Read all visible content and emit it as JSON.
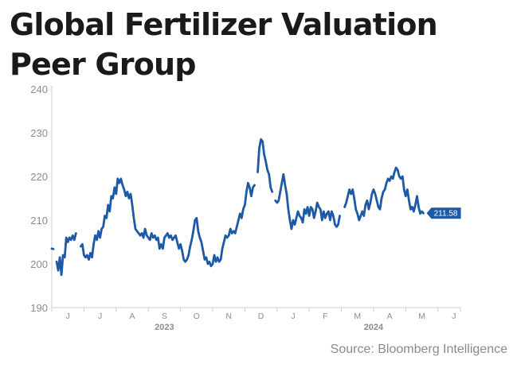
{
  "title_lines": [
    "Global Fertilizer Valuation",
    "Peer Group"
  ],
  "source": "Source: Bloomberg Intelligence",
  "colors": {
    "line": "#1c5aa6",
    "axis": "#cccccc",
    "text": "#8c8c8c"
  },
  "chart_data": {
    "type": "line",
    "title": "Global Fertilizer Valuation Peer Group",
    "xlabel": "",
    "ylabel": "",
    "ylim": [
      190,
      240
    ],
    "yticks": [
      190,
      200,
      210,
      220,
      230,
      240
    ],
    "xlim": [
      0,
      12.7
    ],
    "xticks": [
      {
        "label": "J",
        "x": 0.5
      },
      {
        "label": "J",
        "x": 1.5
      },
      {
        "label": "A",
        "x": 2.5
      },
      {
        "label": "S",
        "x": 3.5
      },
      {
        "label": "O",
        "x": 4.5
      },
      {
        "label": "N",
        "x": 5.5
      },
      {
        "label": "D",
        "x": 6.5
      },
      {
        "label": "J",
        "x": 7.5
      },
      {
        "label": "F",
        "x": 8.5
      },
      {
        "label": "M",
        "x": 9.5
      },
      {
        "label": "A",
        "x": 10.5
      },
      {
        "label": "M",
        "x": 11.5
      },
      {
        "label": "J",
        "x": 12.5
      }
    ],
    "year_labels": [
      {
        "label": "2023",
        "x": 3.5
      },
      {
        "label": "2024",
        "x": 10.0
      }
    ],
    "grid": false,
    "last_value_label": "211.58",
    "series": [
      {
        "name": "Global Fertilizer Valuation Peer Group",
        "segments": [
          [
            [
              0.0,
              203.5
            ],
            [
              0.05,
              203.4
            ]
          ],
          [
            [
              0.15,
              200.5
            ],
            [
              0.2,
              198.5
            ],
            [
              0.25,
              201.5
            ],
            [
              0.3,
              197.5
            ],
            [
              0.35,
              202.0
            ],
            [
              0.4,
              201.5
            ],
            [
              0.45,
              206.0
            ],
            [
              0.5,
              205.0
            ],
            [
              0.55,
              206.0
            ],
            [
              0.6,
              205.5
            ],
            [
              0.65,
              206.5
            ],
            [
              0.7,
              205.5
            ],
            [
              0.75,
              207.0
            ]
          ],
          [
            [
              0.9,
              204.0
            ],
            [
              0.95,
              204.5
            ],
            [
              1.0,
              202.0
            ],
            [
              1.05,
              201.5
            ],
            [
              1.1,
              202.0
            ],
            [
              1.15,
              201.0
            ],
            [
              1.2,
              202.5
            ],
            [
              1.25,
              201.5
            ],
            [
              1.3,
              204.5
            ],
            [
              1.35,
              206.5
            ],
            [
              1.4,
              205.5
            ],
            [
              1.45,
              207.5
            ],
            [
              1.5,
              206.0
            ],
            [
              1.55,
              208.0
            ],
            [
              1.6,
              208.5
            ],
            [
              1.65,
              211.0
            ],
            [
              1.7,
              210.5
            ],
            [
              1.75,
              213.5
            ],
            [
              1.8,
              212.0
            ],
            [
              1.85,
              215.5
            ],
            [
              1.9,
              215.0
            ],
            [
              1.95,
              217.5
            ],
            [
              2.0,
              216.0
            ],
            [
              2.05,
              219.5
            ],
            [
              2.1,
              218.5
            ],
            [
              2.15,
              219.5
            ],
            [
              2.2,
              218.0
            ],
            [
              2.25,
              217.0
            ],
            [
              2.3,
              215.5
            ],
            [
              2.35,
              216.5
            ],
            [
              2.4,
              215.0
            ],
            [
              2.45,
              216.0
            ],
            [
              2.5,
              213.5
            ],
            [
              2.55,
              210.5
            ],
            [
              2.6,
              208.0
            ],
            [
              2.65,
              207.5
            ],
            [
              2.7,
              207.0
            ],
            [
              2.75,
              206.5
            ],
            [
              2.8,
              207.0
            ],
            [
              2.85,
              206.0
            ],
            [
              2.9,
              208.0
            ],
            [
              2.95,
              206.5
            ],
            [
              3.0,
              206.0
            ],
            [
              3.05,
              205.5
            ],
            [
              3.1,
              207.0
            ],
            [
              3.15,
              206.0
            ],
            [
              3.2,
              206.5
            ],
            [
              3.25,
              205.5
            ],
            [
              3.3,
              206.0
            ],
            [
              3.35,
              203.5
            ],
            [
              3.4,
              204.5
            ],
            [
              3.45,
              203.5
            ],
            [
              3.5,
              206.0
            ],
            [
              3.55,
              206.5
            ],
            [
              3.6,
              207.0
            ],
            [
              3.65,
              206.0
            ],
            [
              3.7,
              206.5
            ],
            [
              3.75,
              205.5
            ],
            [
              3.8,
              206.0
            ],
            [
              3.85,
              206.5
            ],
            [
              3.9,
              205.0
            ],
            [
              3.95,
              203.5
            ],
            [
              4.0,
              204.5
            ],
            [
              4.05,
              203.0
            ],
            [
              4.1,
              201.0
            ],
            [
              4.15,
              200.5
            ],
            [
              4.2,
              201.0
            ],
            [
              4.25,
              202.0
            ],
            [
              4.3,
              204.0
            ],
            [
              4.35,
              205.5
            ],
            [
              4.4,
              207.5
            ],
            [
              4.45,
              210.0
            ],
            [
              4.5,
              210.5
            ],
            [
              4.55,
              207.5
            ],
            [
              4.6,
              206.0
            ],
            [
              4.65,
              205.0
            ],
            [
              4.7,
              203.0
            ],
            [
              4.75,
              201.0
            ],
            [
              4.8,
              201.5
            ],
            [
              4.85,
              200.0
            ],
            [
              4.9,
              200.5
            ],
            [
              4.95,
              199.5
            ],
            [
              5.0,
              200.0
            ],
            [
              5.05,
              202.0
            ],
            [
              5.1,
              200.5
            ],
            [
              5.15,
              201.5
            ],
            [
              5.2,
              200.5
            ],
            [
              5.25,
              201.0
            ],
            [
              5.3,
              203.5
            ],
            [
              5.35,
              205.0
            ],
            [
              5.4,
              206.5
            ],
            [
              5.45,
              206.0
            ],
            [
              5.5,
              206.5
            ],
            [
              5.55,
              208.0
            ],
            [
              5.6,
              207.0
            ],
            [
              5.65,
              207.5
            ],
            [
              5.7,
              207.0
            ],
            [
              5.75,
              208.5
            ],
            [
              5.8,
              210.0
            ],
            [
              5.85,
              211.5
            ],
            [
              5.9,
              210.5
            ],
            [
              5.95,
              212.5
            ],
            [
              6.0,
              213.5
            ],
            [
              6.05,
              216.5
            ],
            [
              6.1,
              218.5
            ],
            [
              6.15,
              217.5
            ],
            [
              6.2,
              215.5
            ],
            [
              6.25,
              217.5
            ],
            [
              6.3,
              218.0
            ]
          ],
          [
            [
              6.4,
              221.0
            ],
            [
              6.45,
              226.5
            ],
            [
              6.5,
              228.5
            ],
            [
              6.55,
              228.0
            ],
            [
              6.6,
              225.0
            ],
            [
              6.65,
              223.5
            ],
            [
              6.7,
              221.5
            ],
            [
              6.75,
              220.5
            ],
            [
              6.8,
              217.5
            ],
            [
              6.85,
              216.5
            ]
          ],
          [
            [
              6.95,
              214.5
            ],
            [
              7.0,
              214.0
            ],
            [
              7.05,
              214.5
            ],
            [
              7.1,
              216.5
            ],
            [
              7.15,
              218.5
            ],
            [
              7.2,
              220.5
            ],
            [
              7.25,
              218.0
            ],
            [
              7.3,
              216.0
            ],
            [
              7.35,
              212.5
            ],
            [
              7.4,
              210.0
            ],
            [
              7.45,
              208.0
            ],
            [
              7.5,
              210.0
            ],
            [
              7.55,
              209.0
            ],
            [
              7.6,
              210.5
            ],
            [
              7.65,
              212.0
            ],
            [
              7.7,
              211.0
            ],
            [
              7.75,
              210.5
            ],
            [
              7.8,
              209.5
            ],
            [
              7.85,
              212.5
            ],
            [
              7.9,
              211.5
            ],
            [
              7.95,
              213.0
            ],
            [
              8.0,
              211.0
            ],
            [
              8.05,
              213.0
            ],
            [
              8.1,
              212.5
            ],
            [
              8.15,
              210.5
            ],
            [
              8.2,
              212.0
            ],
            [
              8.25,
              214.0
            ],
            [
              8.3,
              213.0
            ],
            [
              8.35,
              212.5
            ],
            [
              8.4,
              210.0
            ],
            [
              8.45,
              212.0
            ],
            [
              8.5,
              210.5
            ],
            [
              8.55,
              211.5
            ],
            [
              8.6,
              212.0
            ],
            [
              8.65,
              210.0
            ],
            [
              8.7,
              212.0
            ],
            [
              8.75,
              211.0
            ],
            [
              8.8,
              209.0
            ],
            [
              8.85,
              208.5
            ],
            [
              8.9,
              209.0
            ],
            [
              8.95,
              211.0
            ]
          ],
          [
            [
              9.1,
              213.0
            ],
            [
              9.15,
              214.0
            ],
            [
              9.2,
              215.5
            ],
            [
              9.25,
              217.0
            ],
            [
              9.3,
              216.0
            ],
            [
              9.35,
              217.0
            ],
            [
              9.4,
              215.0
            ],
            [
              9.45,
              212.5
            ],
            [
              9.5,
              211.5
            ],
            [
              9.55,
              210.0
            ],
            [
              9.6,
              211.0
            ],
            [
              9.65,
              212.0
            ],
            [
              9.7,
              211.0
            ],
            [
              9.75,
              213.5
            ],
            [
              9.8,
              214.5
            ],
            [
              9.85,
              212.5
            ],
            [
              9.9,
              214.0
            ],
            [
              9.95,
              216.0
            ],
            [
              10.0,
              217.0
            ],
            [
              10.05,
              216.0
            ],
            [
              10.1,
              214.5
            ],
            [
              10.15,
              213.0
            ],
            [
              10.2,
              212.5
            ],
            [
              10.25,
              215.0
            ],
            [
              10.3,
              216.5
            ],
            [
              10.35,
              217.0
            ],
            [
              10.4,
              218.5
            ],
            [
              10.45,
              219.5
            ],
            [
              10.5,
              219.0
            ],
            [
              10.55,
              220.0
            ],
            [
              10.6,
              219.5
            ],
            [
              10.65,
              221.0
            ],
            [
              10.7,
              222.0
            ],
            [
              10.75,
              221.5
            ],
            [
              10.8,
              220.0
            ],
            [
              10.85,
              219.5
            ],
            [
              10.9,
              220.0
            ],
            [
              10.95,
              217.0
            ],
            [
              11.0,
              215.5
            ],
            [
              11.05,
              217.0
            ],
            [
              11.1,
              214.5
            ],
            [
              11.15,
              212.5
            ],
            [
              11.2,
              213.0
            ],
            [
              11.25,
              212.0
            ],
            [
              11.3,
              213.5
            ],
            [
              11.35,
              215.5
            ],
            [
              11.4,
              213.0
            ],
            [
              11.45,
              211.5
            ],
            [
              11.5,
              212.0
            ],
            [
              11.55,
              211.6
            ]
          ]
        ]
      }
    ]
  }
}
